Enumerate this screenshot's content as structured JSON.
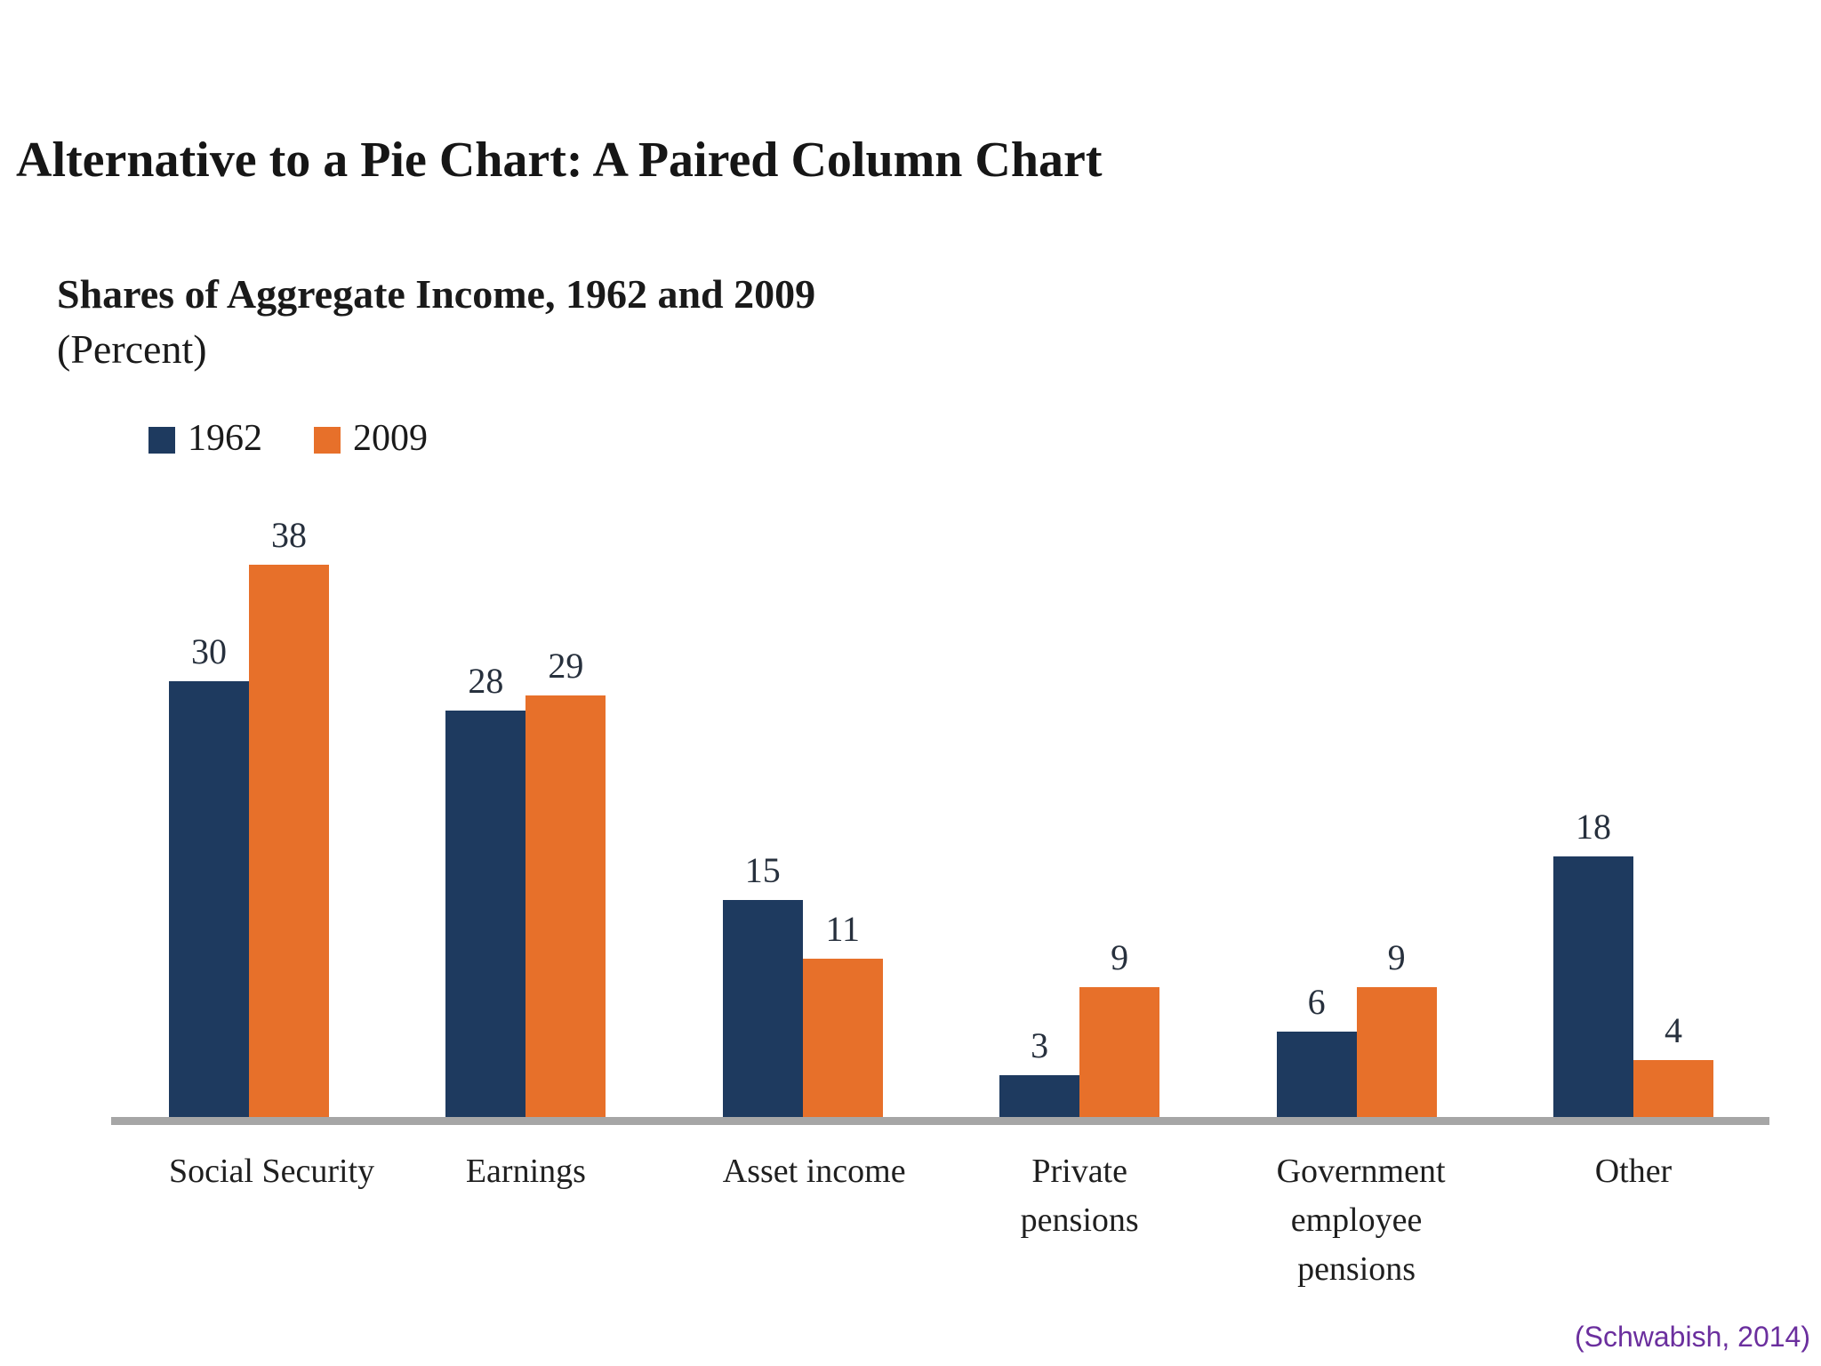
{
  "slide": {
    "title": "Alternative to a Pie Chart: A Paired Column Chart",
    "citation": "(Schwabish, 2014)"
  },
  "chart_data": {
    "type": "bar",
    "title": "Shares of Aggregate Income, 1962 and 2009",
    "unit_label": "(Percent)",
    "categories": [
      "Social Security",
      "Earnings",
      "Asset income",
      "Private pensions",
      "Government employee pensions",
      "Other"
    ],
    "category_label_lines": [
      [
        "Social Security"
      ],
      [
        "Earnings"
      ],
      [
        "Asset income"
      ],
      [
        "Private",
        "pensions"
      ],
      [
        "Government",
        "employee",
        "pensions"
      ],
      [
        "Other"
      ]
    ],
    "series": [
      {
        "name": "1962",
        "color": "#1E3A5F",
        "values": [
          30,
          28,
          15,
          3,
          6,
          18
        ]
      },
      {
        "name": "2009",
        "color": "#E7702A",
        "values": [
          38,
          29,
          11,
          9,
          9,
          4
        ]
      }
    ],
    "value_labels": true,
    "ylim": [
      0,
      40
    ],
    "grid": false,
    "legend_position": "top-left",
    "axis_line_color": "#A6A6A6",
    "xlabel": "",
    "ylabel": ""
  }
}
